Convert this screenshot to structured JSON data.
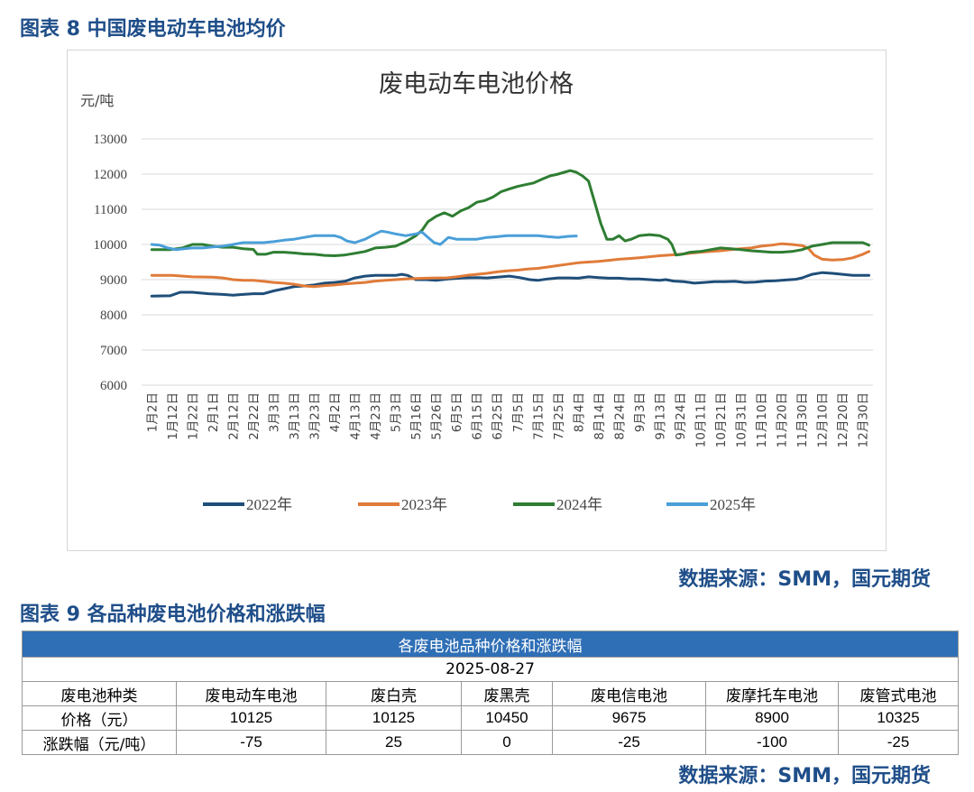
{
  "figure8": {
    "caption": "图表 8 中国废电动车电池均价",
    "source": "数据来源：SMM，国元期货"
  },
  "chart_data": {
    "type": "line",
    "title": "废电动车电池价格",
    "ylabel": "元/吨",
    "ylim": [
      6000,
      13000
    ],
    "yticks": [
      "13000",
      "12000",
      "11000",
      "10000",
      "9000",
      "8000",
      "7000",
      "6000"
    ],
    "x_tick_labels": [
      "1月2日",
      "1月12日",
      "1月22日",
      "2月1日",
      "2月12日",
      "2月22日",
      "3月3日",
      "3月13日",
      "3月23日",
      "4月2日",
      "4月13日",
      "4月23日",
      "5月3日",
      "5月16日",
      "5月26日",
      "6月5日",
      "6月15日",
      "6月25日",
      "7月5日",
      "7月15日",
      "7月25日",
      "8月4日",
      "8月14日",
      "8月24日",
      "9月3日",
      "9月13日",
      "9月24日",
      "10月11日",
      "10月21日",
      "10月31日",
      "11月10日",
      "11月20日",
      "11月30日",
      "12月10日",
      "12月20日",
      "12月30日"
    ],
    "x_count": 36,
    "grid": true,
    "legend_position": "bottom",
    "series": [
      {
        "name": "2022年",
        "color": "#1f4e79",
        "points": [
          [
            0,
            8530
          ],
          [
            0.9,
            8540
          ],
          [
            1.4,
            8640
          ],
          [
            2,
            8640
          ],
          [
            2.8,
            8600
          ],
          [
            3.5,
            8580
          ],
          [
            4,
            8560
          ],
          [
            4.5,
            8580
          ],
          [
            5,
            8600
          ],
          [
            5.5,
            8600
          ],
          [
            6,
            8680
          ],
          [
            6.5,
            8740
          ],
          [
            7,
            8800
          ],
          [
            7.5,
            8820
          ],
          [
            8,
            8850
          ],
          [
            8.5,
            8900
          ],
          [
            9,
            8920
          ],
          [
            9.5,
            8950
          ],
          [
            10,
            9050
          ],
          [
            10.5,
            9100
          ],
          [
            11,
            9120
          ],
          [
            11.5,
            9120
          ],
          [
            12,
            9120
          ],
          [
            12.3,
            9150
          ],
          [
            12.6,
            9120
          ],
          [
            13,
            9000
          ],
          [
            13.5,
            9000
          ],
          [
            14,
            8980
          ],
          [
            14.6,
            9020
          ],
          [
            15.3,
            9050
          ],
          [
            16,
            9060
          ],
          [
            16.5,
            9050
          ],
          [
            17,
            9070
          ],
          [
            17.6,
            9100
          ],
          [
            18.1,
            9060
          ],
          [
            18.6,
            9000
          ],
          [
            19,
            8980
          ],
          [
            19.5,
            9020
          ],
          [
            20,
            9050
          ],
          [
            20.5,
            9050
          ],
          [
            21,
            9040
          ],
          [
            21.5,
            9080
          ],
          [
            22,
            9060
          ],
          [
            22.5,
            9040
          ],
          [
            23,
            9040
          ],
          [
            23.5,
            9020
          ],
          [
            24,
            9020
          ],
          [
            24.5,
            9000
          ],
          [
            25,
            8980
          ],
          [
            25.3,
            9000
          ],
          [
            25.7,
            8960
          ],
          [
            26.2,
            8940
          ],
          [
            26.7,
            8900
          ],
          [
            27.2,
            8920
          ],
          [
            27.7,
            8940
          ],
          [
            28.2,
            8940
          ],
          [
            28.7,
            8950
          ],
          [
            29.2,
            8920
          ],
          [
            29.7,
            8930
          ],
          [
            30.2,
            8960
          ],
          [
            30.7,
            8970
          ],
          [
            31.2,
            8990
          ],
          [
            31.7,
            9010
          ],
          [
            32,
            9050
          ],
          [
            32.5,
            9150
          ],
          [
            33,
            9200
          ],
          [
            33.5,
            9180
          ],
          [
            34,
            9150
          ],
          [
            34.5,
            9120
          ],
          [
            35,
            9120
          ],
          [
            35.3,
            9120
          ]
        ]
      },
      {
        "name": "2023年",
        "color": "#e07b39",
        "points": [
          [
            0,
            9120
          ],
          [
            1,
            9120
          ],
          [
            2,
            9080
          ],
          [
            3,
            9070
          ],
          [
            3.5,
            9050
          ],
          [
            4,
            9000
          ],
          [
            4.5,
            8980
          ],
          [
            5,
            8980
          ],
          [
            5.5,
            8950
          ],
          [
            6,
            8920
          ],
          [
            6.5,
            8900
          ],
          [
            7,
            8870
          ],
          [
            7.5,
            8820
          ],
          [
            8,
            8800
          ],
          [
            8.5,
            8830
          ],
          [
            9,
            8850
          ],
          [
            9.5,
            8880
          ],
          [
            10,
            8900
          ],
          [
            10.5,
            8920
          ],
          [
            11,
            8960
          ],
          [
            11.5,
            8980
          ],
          [
            12,
            9000
          ],
          [
            12.5,
            9020
          ],
          [
            13,
            9030
          ],
          [
            13.5,
            9040
          ],
          [
            14,
            9050
          ],
          [
            14.5,
            9050
          ],
          [
            15,
            9080
          ],
          [
            15.5,
            9120
          ],
          [
            16,
            9150
          ],
          [
            16.5,
            9180
          ],
          [
            17,
            9220
          ],
          [
            17.5,
            9250
          ],
          [
            18,
            9270
          ],
          [
            18.5,
            9300
          ],
          [
            19,
            9320
          ],
          [
            19.5,
            9360
          ],
          [
            20,
            9400
          ],
          [
            20.5,
            9440
          ],
          [
            21,
            9480
          ],
          [
            21.5,
            9500
          ],
          [
            22,
            9520
          ],
          [
            22.5,
            9550
          ],
          [
            23,
            9580
          ],
          [
            23.5,
            9600
          ],
          [
            24,
            9620
          ],
          [
            24.5,
            9650
          ],
          [
            25,
            9680
          ],
          [
            25.5,
            9700
          ],
          [
            26,
            9720
          ],
          [
            26.5,
            9750
          ],
          [
            27,
            9780
          ],
          [
            27.5,
            9800
          ],
          [
            28,
            9820
          ],
          [
            28.5,
            9850
          ],
          [
            29,
            9880
          ],
          [
            29.5,
            9900
          ],
          [
            30,
            9950
          ],
          [
            30.5,
            9980
          ],
          [
            31,
            10020
          ],
          [
            31.5,
            10000
          ],
          [
            32,
            9970
          ],
          [
            32.3,
            9900
          ],
          [
            32.6,
            9700
          ],
          [
            33,
            9580
          ],
          [
            33.5,
            9560
          ],
          [
            34,
            9570
          ],
          [
            34.5,
            9620
          ],
          [
            35,
            9720
          ],
          [
            35.3,
            9800
          ]
        ]
      },
      {
        "name": "2024年",
        "color": "#2e7d32",
        "points": [
          [
            0,
            9850
          ],
          [
            0.9,
            9850
          ],
          [
            1.5,
            9900
          ],
          [
            2,
            10000
          ],
          [
            2.5,
            10000
          ],
          [
            3,
            9950
          ],
          [
            3.5,
            9920
          ],
          [
            4,
            9920
          ],
          [
            4.5,
            9880
          ],
          [
            5,
            9860
          ],
          [
            5.2,
            9720
          ],
          [
            5.6,
            9720
          ],
          [
            6,
            9780
          ],
          [
            6.5,
            9780
          ],
          [
            7,
            9760
          ],
          [
            7.5,
            9730
          ],
          [
            8,
            9720
          ],
          [
            8.5,
            9690
          ],
          [
            9,
            9680
          ],
          [
            9.5,
            9700
          ],
          [
            10,
            9750
          ],
          [
            10.5,
            9800
          ],
          [
            11,
            9900
          ],
          [
            11.5,
            9920
          ],
          [
            12,
            9950
          ],
          [
            12.5,
            10080
          ],
          [
            13,
            10250
          ],
          [
            13.3,
            10400
          ],
          [
            13.6,
            10650
          ],
          [
            14,
            10800
          ],
          [
            14.4,
            10900
          ],
          [
            14.8,
            10800
          ],
          [
            15.2,
            10950
          ],
          [
            15.6,
            11050
          ],
          [
            16,
            11200
          ],
          [
            16.4,
            11250
          ],
          [
            16.8,
            11350
          ],
          [
            17.2,
            11500
          ],
          [
            17.6,
            11580
          ],
          [
            18,
            11650
          ],
          [
            18.4,
            11700
          ],
          [
            18.8,
            11750
          ],
          [
            19.2,
            11850
          ],
          [
            19.6,
            11950
          ],
          [
            20,
            12000
          ],
          [
            20.3,
            12050
          ],
          [
            20.6,
            12100
          ],
          [
            20.9,
            12050
          ],
          [
            21.2,
            11950
          ],
          [
            21.5,
            11800
          ],
          [
            21.8,
            11200
          ],
          [
            22.1,
            10600
          ],
          [
            22.4,
            10150
          ],
          [
            22.7,
            10150
          ],
          [
            23,
            10250
          ],
          [
            23.3,
            10100
          ],
          [
            23.6,
            10150
          ],
          [
            24,
            10250
          ],
          [
            24.5,
            10280
          ],
          [
            25,
            10250
          ],
          [
            25.4,
            10150
          ],
          [
            25.6,
            10000
          ],
          [
            25.8,
            9700
          ],
          [
            26.1,
            9720
          ],
          [
            26.5,
            9780
          ],
          [
            27,
            9800
          ],
          [
            27.5,
            9850
          ],
          [
            28,
            9900
          ],
          [
            28.5,
            9880
          ],
          [
            29,
            9850
          ],
          [
            29.5,
            9820
          ],
          [
            30,
            9800
          ],
          [
            30.5,
            9780
          ],
          [
            31,
            9780
          ],
          [
            31.5,
            9800
          ],
          [
            32,
            9850
          ],
          [
            32.5,
            9950
          ],
          [
            33,
            10000
          ],
          [
            33.5,
            10050
          ],
          [
            34,
            10050
          ],
          [
            34.5,
            10050
          ],
          [
            35,
            10050
          ],
          [
            35.3,
            9980
          ]
        ]
      },
      {
        "name": "2025年",
        "color": "#4a9fd8",
        "points": [
          [
            0,
            10000
          ],
          [
            0.4,
            9980
          ],
          [
            0.8,
            9900
          ],
          [
            1.2,
            9850
          ],
          [
            1.6,
            9880
          ],
          [
            2,
            9900
          ],
          [
            2.5,
            9900
          ],
          [
            3,
            9930
          ],
          [
            3.5,
            9950
          ],
          [
            4,
            10000
          ],
          [
            4.5,
            10050
          ],
          [
            5,
            10050
          ],
          [
            5.5,
            10050
          ],
          [
            6,
            10080
          ],
          [
            6.5,
            10120
          ],
          [
            7,
            10150
          ],
          [
            7.5,
            10200
          ],
          [
            8,
            10250
          ],
          [
            8.5,
            10250
          ],
          [
            9,
            10250
          ],
          [
            9.3,
            10200
          ],
          [
            9.6,
            10100
          ],
          [
            10,
            10050
          ],
          [
            10.5,
            10150
          ],
          [
            11,
            10300
          ],
          [
            11.3,
            10380
          ],
          [
            11.6,
            10350
          ],
          [
            12,
            10300
          ],
          [
            12.5,
            10250
          ],
          [
            13,
            10300
          ],
          [
            13.3,
            10350
          ],
          [
            13.6,
            10200
          ],
          [
            13.9,
            10050
          ],
          [
            14.2,
            10000
          ],
          [
            14.6,
            10200
          ],
          [
            15,
            10150
          ],
          [
            15.5,
            10150
          ],
          [
            16,
            10150
          ],
          [
            16.5,
            10200
          ],
          [
            17,
            10220
          ],
          [
            17.5,
            10250
          ],
          [
            18,
            10250
          ],
          [
            18.5,
            10250
          ],
          [
            19,
            10250
          ],
          [
            19.5,
            10220
          ],
          [
            20,
            10200
          ],
          [
            20.5,
            10230
          ],
          [
            20.9,
            10240
          ]
        ]
      }
    ]
  },
  "figure9": {
    "caption": "图表 9 各品种废电池价格和涨跌幅",
    "source": "数据来源：SMM，国元期货",
    "table_title": "各废电池品种价格和涨跌幅",
    "date": "2025-08-27",
    "header": [
      "废电池种类",
      "废电动车电池",
      "废白壳",
      "废黑壳",
      "废电信电池",
      "废摩托车电池",
      "废管式电池"
    ],
    "rows": [
      [
        "价格（元）",
        "10125",
        "10125",
        "10450",
        "9675",
        "8900",
        "10325"
      ],
      [
        "涨跌幅（元/吨）",
        "-75",
        "25",
        "0",
        "-25",
        "-100",
        "-25"
      ]
    ]
  }
}
